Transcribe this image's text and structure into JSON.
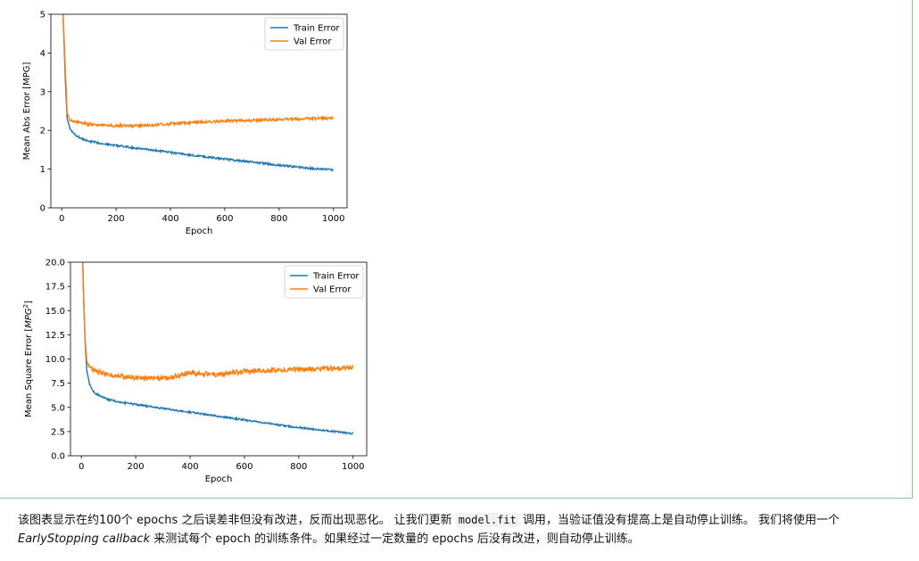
{
  "chart_data": [
    {
      "type": "line",
      "xlabel": "Epoch",
      "ylabel": "Mean Abs Error [MPG]",
      "xlim": [
        -40,
        1050
      ],
      "ylim": [
        0,
        5
      ],
      "xticks": [
        "0",
        "200",
        "400",
        "600",
        "800",
        "1000"
      ],
      "yticks": [
        "0",
        "1",
        "2",
        "3",
        "4",
        "5"
      ],
      "legend_position": "top-right",
      "series": [
        {
          "name": "Train Error",
          "color": "#1f77b4",
          "x": [
            0,
            5,
            10,
            15,
            20,
            30,
            40,
            50,
            75,
            100,
            150,
            200,
            250,
            300,
            400,
            500,
            600,
            700,
            800,
            900,
            1000
          ],
          "y": [
            5.6,
            5.0,
            4.0,
            3.0,
            2.3,
            2.05,
            1.95,
            1.88,
            1.78,
            1.72,
            1.66,
            1.61,
            1.56,
            1.52,
            1.43,
            1.34,
            1.26,
            1.18,
            1.1,
            1.03,
            0.98
          ]
        },
        {
          "name": "Val Error",
          "color": "#ff7f0e",
          "x": [
            0,
            5,
            10,
            15,
            20,
            30,
            50,
            100,
            200,
            300,
            400,
            500,
            600,
            700,
            800,
            900,
            1000
          ],
          "y": [
            5.6,
            5.0,
            4.2,
            3.3,
            2.45,
            2.28,
            2.22,
            2.16,
            2.12,
            2.12,
            2.17,
            2.21,
            2.24,
            2.26,
            2.28,
            2.3,
            2.32
          ]
        }
      ]
    },
    {
      "type": "line",
      "xlabel": "Epoch",
      "ylabel": "Mean Square Error [$MPG^2$]",
      "ylabel_main": "Mean Square Error [",
      "ylabel_unit": "MPG",
      "ylabel_sup": "2",
      "ylabel_end": "]",
      "xlim": [
        -40,
        1050
      ],
      "ylim": [
        0,
        20
      ],
      "xticks": [
        "0",
        "200",
        "400",
        "600",
        "800",
        "1000"
      ],
      "yticks": [
        "0.0",
        "2.5",
        "5.0",
        "7.5",
        "10.0",
        "12.5",
        "15.0",
        "17.5",
        "20.0"
      ],
      "legend_position": "top-right",
      "series": [
        {
          "name": "Train Error",
          "color": "#1f77b4",
          "x": [
            0,
            5,
            10,
            15,
            20,
            30,
            40,
            50,
            75,
            100,
            150,
            200,
            250,
            300,
            400,
            500,
            600,
            700,
            800,
            900,
            1000
          ],
          "y": [
            24,
            20,
            15,
            11,
            8.8,
            7.4,
            6.8,
            6.5,
            6.1,
            5.8,
            5.5,
            5.3,
            5.1,
            4.9,
            4.5,
            4.1,
            3.7,
            3.3,
            2.9,
            2.6,
            2.3
          ]
        },
        {
          "name": "Val Error",
          "color": "#ff7f0e",
          "x": [
            0,
            5,
            10,
            15,
            20,
            30,
            50,
            100,
            200,
            300,
            400,
            500,
            600,
            700,
            800,
            900,
            1000
          ],
          "y": [
            24,
            20,
            15,
            11.5,
            9.8,
            9.1,
            8.8,
            8.4,
            8.0,
            8.0,
            8.5,
            8.4,
            8.7,
            8.8,
            8.9,
            9.0,
            9.1
          ]
        }
      ]
    }
  ],
  "paragraph": {
    "part1": "该图表显示在约100个 epochs 之后误差非但没有改进，反而出现恶化。 让我们更新 ",
    "code": "model.fit",
    "part2": " 调用，当验证值没有提高上是自动停止训练。 我们将使用一个 ",
    "em": "EarlyStopping callback",
    "part3": " 来测试每个 epoch 的训练条件。如果经过一定数量的 epochs 后没有改进，则自动停止训练。"
  }
}
